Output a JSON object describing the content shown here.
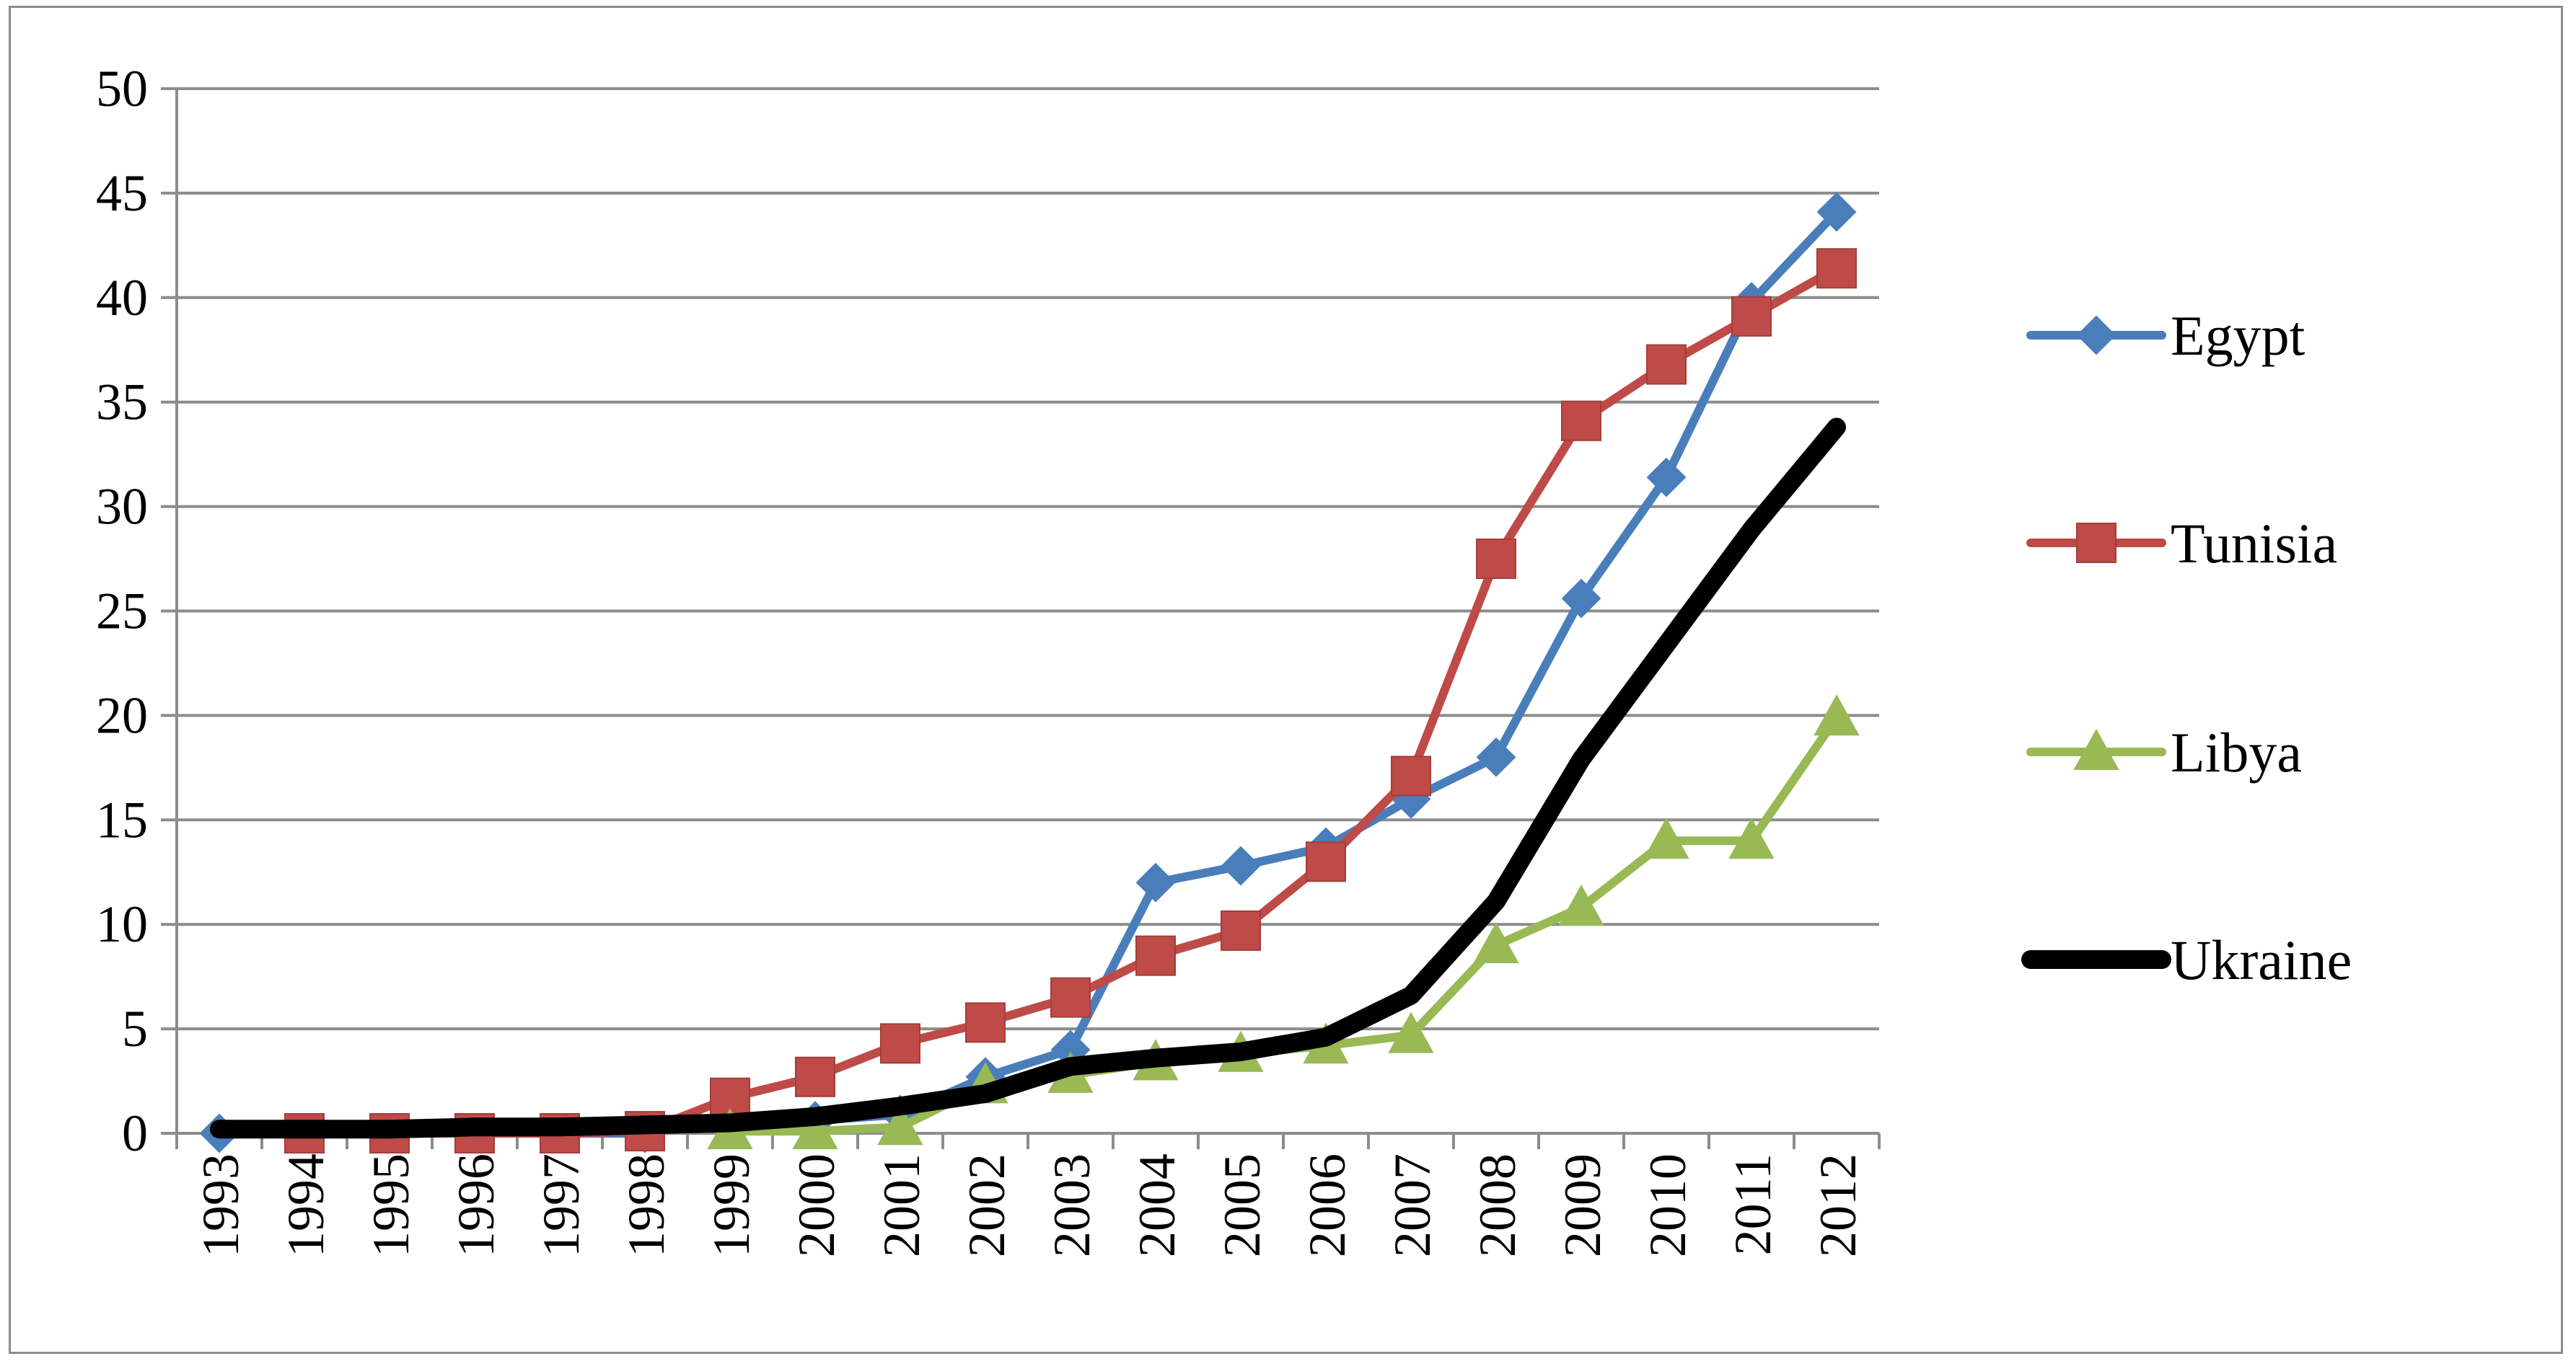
{
  "chart_data": {
    "type": "line",
    "title": "",
    "xlabel": "",
    "ylabel": "",
    "ylim": [
      0,
      50
    ],
    "yticks": [
      0,
      5,
      10,
      15,
      20,
      25,
      30,
      35,
      40,
      45,
      50
    ],
    "grid": true,
    "legend_position": "right",
    "categories": [
      "1993",
      "1994",
      "1995",
      "1996",
      "1997",
      "1998",
      "1999",
      "2000",
      "2001",
      "2002",
      "2003",
      "2004",
      "2005",
      "2006",
      "2007",
      "2008",
      "2009",
      "2010",
      "2011",
      "2012"
    ],
    "series": [
      {
        "name": "Egypt",
        "color": "#4a7ebb",
        "marker": "diamond",
        "values": [
          0,
          0,
          0,
          0,
          0,
          0,
          0.6,
          0.6,
          0.9,
          2.7,
          4.0,
          12.0,
          12.8,
          13.7,
          16.0,
          18.0,
          25.6,
          31.4,
          39.8,
          44.1
        ]
      },
      {
        "name": "Tunisia",
        "color": "#be4b48",
        "marker": "square",
        "values": [
          null,
          0,
          0,
          0,
          0,
          0.1,
          1.7,
          2.7,
          4.3,
          5.3,
          6.5,
          8.5,
          9.7,
          13.0,
          17.1,
          27.5,
          34.1,
          36.8,
          39.1,
          41.4
        ]
      },
      {
        "name": "Libya",
        "color": "#98b954",
        "marker": "triangle",
        "values": [
          null,
          null,
          null,
          null,
          null,
          null,
          0.1,
          0.1,
          0.3,
          2.3,
          2.8,
          3.4,
          3.8,
          4.2,
          4.7,
          9.0,
          10.8,
          14.0,
          14.0,
          19.9
        ]
      },
      {
        "name": "Ukraine",
        "color": "#000000",
        "marker": "none",
        "values": [
          0.2,
          0.2,
          0.2,
          0.3,
          0.3,
          0.4,
          0.5,
          0.8,
          1.3,
          1.9,
          3.2,
          3.6,
          3.9,
          4.6,
          6.6,
          11.1,
          17.9,
          23.4,
          28.9,
          33.8
        ]
      }
    ]
  }
}
